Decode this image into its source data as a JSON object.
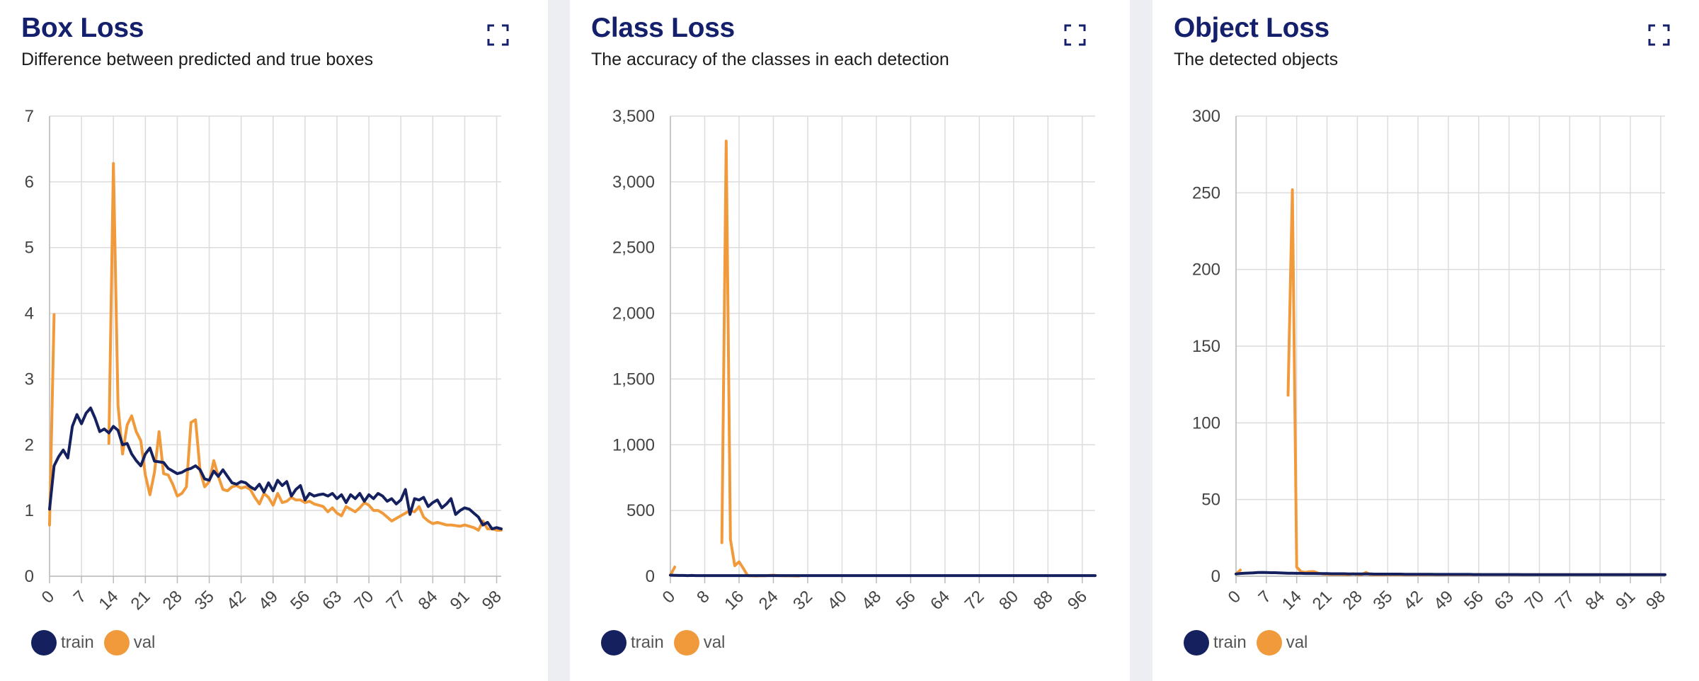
{
  "colors": {
    "train": "#15205f",
    "val": "#f09a3c",
    "title": "#14206b",
    "grid": "#dcdcdc"
  },
  "icons": {
    "expand": "expand-icon"
  },
  "panels": [
    {
      "title": "Box Loss",
      "subtitle": "Difference between predicted and true boxes"
    },
    {
      "title": "Class Loss",
      "subtitle": "The accuracy of the classes in each detection"
    },
    {
      "title": "Object Loss",
      "subtitle": "The detected objects"
    }
  ],
  "chart_data": [
    {
      "type": "line",
      "title": "Box Loss",
      "xlim": [
        0,
        99
      ],
      "ylim": [
        0,
        7
      ],
      "x_ticks": [
        "0",
        "7",
        "14",
        "21",
        "28",
        "35",
        "42",
        "49",
        "56",
        "63",
        "70",
        "77",
        "84",
        "91",
        "98"
      ],
      "y_ticks": [
        "0",
        "1",
        "2",
        "3",
        "4",
        "5",
        "6",
        "7"
      ],
      "grid": true,
      "legend_position": "bottom-left",
      "series": [
        {
          "name": "train",
          "x_start": 0,
          "values": [
            1.02,
            1.68,
            1.82,
            1.92,
            1.8,
            2.28,
            2.46,
            2.32,
            2.48,
            2.56,
            2.4,
            2.2,
            2.24,
            2.18,
            2.28,
            2.22,
            2.0,
            2.02,
            1.86,
            1.76,
            1.68,
            1.86,
            1.95,
            1.75,
            1.74,
            1.73,
            1.64,
            1.6,
            1.56,
            1.58,
            1.62,
            1.64,
            1.68,
            1.62,
            1.48,
            1.46,
            1.6,
            1.52,
            1.62,
            1.52,
            1.42,
            1.4,
            1.44,
            1.42,
            1.36,
            1.32,
            1.4,
            1.28,
            1.42,
            1.3,
            1.46,
            1.38,
            1.44,
            1.22,
            1.32,
            1.38,
            1.16,
            1.26,
            1.22,
            1.24,
            1.25,
            1.22,
            1.26,
            1.18,
            1.24,
            1.12,
            1.24,
            1.18,
            1.26,
            1.14,
            1.24,
            1.18,
            1.26,
            1.22,
            1.14,
            1.18,
            1.1,
            1.16,
            1.32,
            0.94,
            1.18,
            1.16,
            1.2,
            1.06,
            1.12,
            1.16,
            1.04,
            1.1,
            1.18,
            0.94,
            1.0,
            1.04,
            1.02,
            0.96,
            0.9,
            0.78,
            0.82,
            0.72,
            0.74,
            0.72
          ]
        },
        {
          "name": "val",
          "x_start": 0,
          "values": [
            0.78,
            3.98,
            null,
            null,
            null,
            null,
            null,
            null,
            null,
            null,
            null,
            null,
            null,
            2.02,
            6.28,
            2.6,
            1.86,
            2.3,
            2.44,
            2.2,
            2.06,
            1.54,
            1.24,
            1.58,
            2.2,
            1.56,
            1.54,
            1.4,
            1.22,
            1.26,
            1.36,
            2.34,
            2.38,
            1.6,
            1.36,
            1.44,
            1.76,
            1.52,
            1.32,
            1.3,
            1.36,
            1.38,
            1.34,
            1.36,
            1.32,
            1.2,
            1.1,
            1.26,
            1.2,
            1.08,
            1.26,
            1.12,
            1.14,
            1.2,
            1.16,
            1.16,
            1.12,
            1.14,
            1.1,
            1.08,
            1.06,
            0.98,
            1.04,
            0.96,
            0.92,
            1.06,
            1.02,
            0.98,
            1.04,
            1.12,
            1.08,
            1.0,
            1.0,
            0.96,
            0.9,
            0.84,
            0.88,
            0.92,
            0.96,
            1.0,
            0.98,
            1.06,
            0.9,
            0.84,
            0.8,
            0.82,
            0.8,
            0.78,
            0.78,
            0.77,
            0.76,
            0.78,
            0.76,
            0.74,
            0.7,
            0.84,
            0.72,
            0.72,
            0.7,
            0.7
          ]
        }
      ]
    },
    {
      "type": "line",
      "title": "Class Loss",
      "xlim": [
        0,
        99
      ],
      "ylim": [
        0,
        3500
      ],
      "x_ticks": [
        "0",
        "8",
        "16",
        "24",
        "32",
        "40",
        "48",
        "56",
        "64",
        "72",
        "80",
        "88",
        "96"
      ],
      "y_ticks": [
        "0",
        "500",
        "1,000",
        "1,500",
        "2,000",
        "2,500",
        "3,000",
        "3,500"
      ],
      "grid": true,
      "legend_position": "bottom-left",
      "series": [
        {
          "name": "train",
          "x_start": 0,
          "values": [
            8,
            7,
            6,
            6,
            5,
            6,
            5,
            5,
            5,
            5,
            5,
            5,
            5,
            5,
            5,
            5,
            5,
            5,
            5,
            5,
            5,
            5,
            5,
            5,
            5,
            5,
            5,
            5,
            5,
            5,
            5,
            5,
            5,
            5,
            5,
            5,
            5,
            5,
            5,
            5,
            5,
            5,
            5,
            5,
            5,
            5,
            5,
            5,
            5,
            5,
            5,
            5,
            5,
            5,
            5,
            5,
            5,
            5,
            5,
            5,
            5,
            5,
            5,
            5,
            5,
            5,
            5,
            5,
            5,
            5,
            5,
            5,
            5,
            5,
            5,
            5,
            5,
            5,
            5,
            5,
            5,
            5,
            5,
            5,
            5,
            5,
            5,
            5,
            5,
            5,
            5,
            5,
            5,
            5,
            5,
            5,
            5,
            5,
            5,
            5
          ]
        },
        {
          "name": "val",
          "x_start": 0,
          "values": [
            8,
            70,
            null,
            null,
            null,
            null,
            null,
            null,
            null,
            null,
            null,
            null,
            255,
            3310,
            280,
            80,
            110,
            60,
            5,
            3,
            2,
            4,
            3,
            6,
            8,
            5,
            4,
            3,
            3,
            2,
            2
          ]
        }
      ]
    },
    {
      "type": "line",
      "title": "Object Loss",
      "xlim": [
        0,
        99
      ],
      "ylim": [
        0,
        300
      ],
      "x_ticks": [
        "0",
        "7",
        "14",
        "21",
        "28",
        "35",
        "42",
        "49",
        "56",
        "63",
        "70",
        "77",
        "84",
        "91",
        "98"
      ],
      "y_ticks": [
        "0",
        "50",
        "100",
        "150",
        "200",
        "250",
        "300"
      ],
      "grid": true,
      "legend_position": "bottom-left",
      "series": [
        {
          "name": "train",
          "x_start": 0,
          "values": [
            1.5,
            1.8,
            2.0,
            2.1,
            2.2,
            2.4,
            2.5,
            2.4,
            2.3,
            2.3,
            2.2,
            2.1,
            2.0,
            2.0,
            1.9,
            1.9,
            1.8,
            1.8,
            1.8,
            1.7,
            1.7,
            1.7,
            1.6,
            1.6,
            1.6,
            1.6,
            1.5,
            1.5,
            1.5,
            1.5,
            1.5,
            1.5,
            1.4,
            1.4,
            1.4,
            1.4,
            1.4,
            1.4,
            1.4,
            1.3,
            1.3,
            1.3,
            1.3,
            1.3,
            1.3,
            1.3,
            1.2,
            1.2,
            1.2,
            1.2,
            1.2,
            1.2,
            1.2,
            1.2,
            1.2,
            1.1,
            1.1,
            1.1,
            1.1,
            1.1,
            1.1,
            1.1,
            1.1,
            1.1,
            1.1,
            1.1,
            1.0,
            1.0,
            1.0,
            1.0,
            1.0,
            1.0,
            1.0,
            1.0,
            1.0,
            1.0,
            1.0,
            1.0,
            1.0,
            1.0,
            1.0,
            1.0,
            1.0,
            1.0,
            1.0,
            1.0,
            1.0,
            1.0,
            1.0,
            1.0,
            1.0,
            1.0,
            1.0,
            1.0,
            1.0,
            1.0,
            1.0,
            1.0,
            1.0,
            1.0
          ]
        },
        {
          "name": "val",
          "x_start": 0,
          "values": [
            1.5,
            4.0,
            null,
            null,
            null,
            null,
            null,
            null,
            null,
            null,
            null,
            null,
            118,
            252,
            6,
            3,
            2.5,
            3,
            3,
            2,
            1.5,
            1.3,
            1.2,
            1.2,
            1.3,
            1.1,
            1.0,
            1.6,
            1.0,
            1.0,
            2.5,
            1.0,
            1.0,
            1.0,
            1.0,
            1.0,
            1.0,
            1.0,
            1.0,
            1.0,
            1.0,
            1.0,
            1.0,
            1.0,
            1.0,
            1.0,
            1.0,
            1.0,
            1.0,
            1.0,
            1.0,
            1.0,
            1.0,
            1.0,
            1.0,
            1.0,
            1.2,
            1.0,
            1.0,
            1.0,
            1.0,
            1.0,
            1.0,
            1.0,
            1.0,
            1.0,
            1.0,
            1.0,
            1.0,
            1.0,
            1.0,
            1.0,
            1.0,
            1.0,
            1.0,
            1.0,
            1.0,
            1.0,
            1.0,
            1.0,
            1.0,
            1.0,
            1.0,
            1.0,
            1.0,
            1.0,
            1.0,
            1.0,
            1.0,
            1.0,
            1.0,
            1.0,
            1.0,
            1.0,
            1.0,
            1.0,
            1.0,
            1.0,
            1.0
          ]
        }
      ]
    }
  ],
  "legend": {
    "train_label": "train",
    "val_label": "val"
  }
}
